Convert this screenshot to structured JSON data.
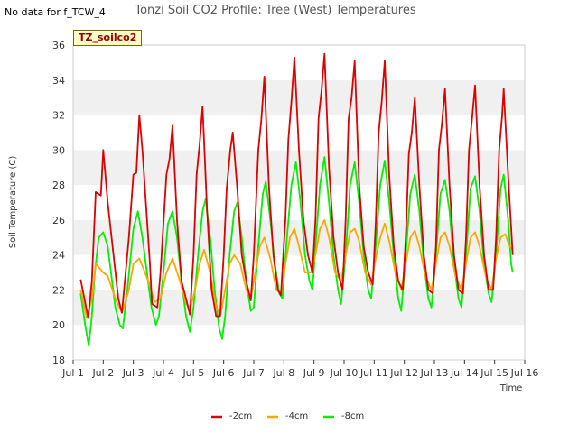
{
  "note": "No data for f_TCW_4",
  "badge": "TZ_soilco2",
  "chart_data": {
    "type": "line",
    "title": "Tonzi Soil CO2 Profile: Tree (West) Temperatures",
    "xlabel": "Time",
    "ylabel": "Soil Temperature (C)",
    "xlim": [
      1,
      16
    ],
    "ylim": [
      18,
      36
    ],
    "x_ticks": [
      1,
      2,
      3,
      4,
      5,
      6,
      7,
      8,
      9,
      10,
      11,
      12,
      13,
      14,
      15,
      16
    ],
    "x_tick_labels": [
      "Jul 1",
      "Jul 2",
      "Jul 3",
      "Jul 4",
      "Jul 5",
      "Jul 6",
      "Jul 7",
      "Jul 8",
      "Jul 9",
      "Jul 10",
      "Jul 11",
      "Jul 12",
      "Jul 13",
      "Jul 14",
      "Jul 15",
      "Jul 16"
    ],
    "y_ticks": [
      18,
      20,
      22,
      24,
      26,
      28,
      30,
      32,
      34,
      36
    ],
    "grid": "horizontal bands",
    "legend_position": "bottom",
    "series_colors": [
      "#dd0000",
      "#ffa500",
      "#00ee00"
    ],
    "series": [
      {
        "name": "-2cm",
        "color": "#dd0000",
        "points": [
          [
            1.25,
            22.6
          ],
          [
            1.5,
            20.4
          ],
          [
            1.62,
            22.5
          ],
          [
            1.75,
            27.6
          ],
          [
            1.92,
            27.4
          ],
          [
            2.0,
            30.0
          ],
          [
            2.15,
            27.0
          ],
          [
            2.5,
            21.5
          ],
          [
            2.62,
            20.7
          ],
          [
            2.85,
            25.0
          ],
          [
            3.0,
            28.6
          ],
          [
            3.1,
            28.7
          ],
          [
            3.2,
            32.0
          ],
          [
            3.3,
            30.0
          ],
          [
            3.55,
            23.5
          ],
          [
            3.62,
            21.2
          ],
          [
            3.8,
            21.0
          ],
          [
            3.9,
            23.0
          ],
          [
            4.1,
            28.6
          ],
          [
            4.2,
            29.5
          ],
          [
            4.3,
            31.4
          ],
          [
            4.45,
            26.0
          ],
          [
            4.6,
            22.5
          ],
          [
            4.75,
            21.5
          ],
          [
            4.88,
            20.6
          ],
          [
            5.0,
            24.0
          ],
          [
            5.1,
            28.6
          ],
          [
            5.2,
            30.3
          ],
          [
            5.3,
            32.5
          ],
          [
            5.45,
            26.5
          ],
          [
            5.6,
            22.0
          ],
          [
            5.75,
            20.5
          ],
          [
            5.88,
            20.5
          ],
          [
            6.0,
            24.0
          ],
          [
            6.1,
            27.8
          ],
          [
            6.22,
            30.0
          ],
          [
            6.3,
            31.0
          ],
          [
            6.45,
            27.8
          ],
          [
            6.6,
            24.0
          ],
          [
            6.75,
            22.5
          ],
          [
            6.9,
            21.4
          ],
          [
            7.0,
            24.0
          ],
          [
            7.15,
            30.0
          ],
          [
            7.25,
            31.7
          ],
          [
            7.35,
            34.2
          ],
          [
            7.5,
            28.0
          ],
          [
            7.65,
            24.0
          ],
          [
            7.8,
            22.0
          ],
          [
            7.9,
            21.7
          ],
          [
            8.05,
            26.0
          ],
          [
            8.15,
            30.6
          ],
          [
            8.25,
            32.8
          ],
          [
            8.35,
            35.3
          ],
          [
            8.5,
            30.0
          ],
          [
            8.65,
            26.0
          ],
          [
            8.8,
            24.0
          ],
          [
            8.95,
            23.0
          ],
          [
            9.05,
            26.0
          ],
          [
            9.15,
            31.8
          ],
          [
            9.25,
            33.4
          ],
          [
            9.35,
            35.5
          ],
          [
            9.5,
            29.0
          ],
          [
            9.65,
            25.0
          ],
          [
            9.8,
            23.0
          ],
          [
            9.95,
            22.0
          ],
          [
            10.05,
            26.0
          ],
          [
            10.15,
            31.8
          ],
          [
            10.25,
            33.0
          ],
          [
            10.35,
            35.1
          ],
          [
            10.5,
            28.0
          ],
          [
            10.65,
            24.5
          ],
          [
            10.8,
            23.0
          ],
          [
            10.95,
            22.3
          ],
          [
            11.05,
            25.8
          ],
          [
            11.15,
            31.0
          ],
          [
            11.25,
            32.8
          ],
          [
            11.35,
            35.1
          ],
          [
            11.5,
            28.5
          ],
          [
            11.65,
            24.5
          ],
          [
            11.8,
            22.5
          ],
          [
            11.95,
            22.0
          ],
          [
            12.05,
            25.0
          ],
          [
            12.15,
            29.8
          ],
          [
            12.25,
            31.0
          ],
          [
            12.35,
            33.0
          ],
          [
            12.5,
            28.0
          ],
          [
            12.65,
            24.0
          ],
          [
            12.8,
            22.0
          ],
          [
            12.95,
            21.8
          ],
          [
            13.05,
            24.5
          ],
          [
            13.15,
            30.0
          ],
          [
            13.25,
            31.5
          ],
          [
            13.35,
            33.5
          ],
          [
            13.5,
            28.0
          ],
          [
            13.65,
            24.0
          ],
          [
            13.8,
            22.0
          ],
          [
            13.95,
            21.8
          ],
          [
            14.05,
            25.0
          ],
          [
            14.15,
            30.0
          ],
          [
            14.25,
            31.8
          ],
          [
            14.35,
            33.7
          ],
          [
            14.5,
            28.0
          ],
          [
            14.65,
            24.0
          ],
          [
            14.8,
            22.0
          ],
          [
            14.95,
            22.0
          ],
          [
            15.05,
            25.0
          ],
          [
            15.15,
            30.0
          ],
          [
            15.25,
            32.0
          ],
          [
            15.3,
            33.5
          ],
          [
            15.45,
            28.5
          ],
          [
            15.6,
            24.0
          ]
        ]
      },
      {
        "name": "-4cm",
        "color": "#ffa500",
        "points": [
          [
            1.25,
            22.0
          ],
          [
            1.45,
            20.4
          ],
          [
            1.62,
            21.5
          ],
          [
            1.75,
            23.5
          ],
          [
            2.0,
            23.0
          ],
          [
            2.15,
            22.8
          ],
          [
            2.4,
            21.5
          ],
          [
            2.62,
            20.7
          ],
          [
            2.85,
            22.0
          ],
          [
            3.0,
            23.5
          ],
          [
            3.2,
            23.8
          ],
          [
            3.5,
            22.5
          ],
          [
            3.7,
            21.3
          ],
          [
            3.9,
            21.5
          ],
          [
            4.1,
            23.0
          ],
          [
            4.3,
            23.8
          ],
          [
            4.55,
            22.5
          ],
          [
            4.75,
            21.2
          ],
          [
            4.9,
            21.0
          ],
          [
            5.05,
            22.0
          ],
          [
            5.2,
            23.5
          ],
          [
            5.35,
            24.3
          ],
          [
            5.55,
            23.0
          ],
          [
            5.75,
            21.0
          ],
          [
            5.9,
            20.6
          ],
          [
            6.05,
            22.0
          ],
          [
            6.2,
            23.5
          ],
          [
            6.35,
            24.0
          ],
          [
            6.55,
            23.5
          ],
          [
            6.75,
            22.0
          ],
          [
            6.9,
            21.5
          ],
          [
            7.05,
            23.0
          ],
          [
            7.2,
            24.5
          ],
          [
            7.35,
            25.0
          ],
          [
            7.55,
            23.8
          ],
          [
            7.75,
            22.0
          ],
          [
            7.9,
            21.8
          ],
          [
            8.05,
            23.5
          ],
          [
            8.2,
            25.0
          ],
          [
            8.35,
            25.5
          ],
          [
            8.5,
            24.5
          ],
          [
            8.7,
            23.0
          ],
          [
            8.9,
            23.0
          ],
          [
            9.05,
            24.0
          ],
          [
            9.2,
            25.5
          ],
          [
            9.35,
            26.0
          ],
          [
            9.5,
            25.0
          ],
          [
            9.7,
            23.0
          ],
          [
            9.9,
            22.5
          ],
          [
            10.05,
            24.0
          ],
          [
            10.2,
            25.3
          ],
          [
            10.35,
            25.5
          ],
          [
            10.5,
            24.8
          ],
          [
            10.7,
            23.0
          ],
          [
            10.9,
            22.3
          ],
          [
            11.05,
            23.8
          ],
          [
            11.2,
            25.0
          ],
          [
            11.35,
            25.8
          ],
          [
            11.5,
            24.8
          ],
          [
            11.7,
            23.0
          ],
          [
            11.9,
            22.0
          ],
          [
            12.05,
            23.5
          ],
          [
            12.2,
            25.0
          ],
          [
            12.35,
            25.4
          ],
          [
            12.5,
            24.5
          ],
          [
            12.7,
            22.8
          ],
          [
            12.9,
            22.0
          ],
          [
            13.05,
            23.5
          ],
          [
            13.2,
            25.0
          ],
          [
            13.35,
            25.3
          ],
          [
            13.5,
            24.5
          ],
          [
            13.7,
            22.8
          ],
          [
            13.9,
            22.0
          ],
          [
            14.05,
            23.5
          ],
          [
            14.2,
            25.0
          ],
          [
            14.35,
            25.3
          ],
          [
            14.5,
            24.5
          ],
          [
            14.7,
            22.8
          ],
          [
            14.9,
            22.0
          ],
          [
            15.05,
            23.8
          ],
          [
            15.2,
            25.0
          ],
          [
            15.35,
            25.2
          ],
          [
            15.5,
            24.5
          ],
          [
            15.6,
            24.3
          ]
        ]
      },
      {
        "name": "-8cm",
        "color": "#00ee00",
        "points": [
          [
            1.25,
            21.8
          ],
          [
            1.4,
            20.0
          ],
          [
            1.52,
            18.8
          ],
          [
            1.62,
            20.5
          ],
          [
            1.72,
            23.0
          ],
          [
            1.85,
            25.0
          ],
          [
            2.0,
            25.3
          ],
          [
            2.15,
            24.5
          ],
          [
            2.4,
            21.0
          ],
          [
            2.55,
            20.0
          ],
          [
            2.65,
            19.8
          ],
          [
            2.8,
            22.0
          ],
          [
            3.0,
            25.5
          ],
          [
            3.15,
            26.5
          ],
          [
            3.3,
            25.0
          ],
          [
            3.45,
            23.0
          ],
          [
            3.6,
            21.0
          ],
          [
            3.75,
            20.0
          ],
          [
            3.85,
            20.5
          ],
          [
            4.0,
            23.0
          ],
          [
            4.15,
            25.8
          ],
          [
            4.3,
            26.5
          ],
          [
            4.45,
            25.0
          ],
          [
            4.6,
            22.5
          ],
          [
            4.75,
            20.5
          ],
          [
            4.88,
            19.6
          ],
          [
            5.0,
            21.0
          ],
          [
            5.15,
            24.0
          ],
          [
            5.3,
            26.5
          ],
          [
            5.4,
            27.2
          ],
          [
            5.55,
            25.0
          ],
          [
            5.7,
            22.0
          ],
          [
            5.85,
            19.8
          ],
          [
            5.95,
            19.2
          ],
          [
            6.05,
            20.5
          ],
          [
            6.2,
            24.0
          ],
          [
            6.35,
            26.5
          ],
          [
            6.45,
            27.0
          ],
          [
            6.6,
            25.0
          ],
          [
            6.75,
            22.5
          ],
          [
            6.9,
            20.8
          ],
          [
            7.0,
            21.0
          ],
          [
            7.15,
            24.5
          ],
          [
            7.3,
            27.5
          ],
          [
            7.4,
            28.2
          ],
          [
            7.55,
            26.0
          ],
          [
            7.7,
            23.5
          ],
          [
            7.85,
            21.8
          ],
          [
            7.95,
            21.5
          ],
          [
            8.1,
            25.0
          ],
          [
            8.25,
            28.0
          ],
          [
            8.4,
            29.3
          ],
          [
            8.55,
            27.0
          ],
          [
            8.7,
            24.0
          ],
          [
            8.85,
            22.5
          ],
          [
            8.95,
            22.0
          ],
          [
            9.05,
            24.5
          ],
          [
            9.2,
            28.0
          ],
          [
            9.35,
            29.6
          ],
          [
            9.5,
            27.0
          ],
          [
            9.65,
            24.0
          ],
          [
            9.8,
            22.0
          ],
          [
            9.9,
            21.2
          ],
          [
            10.05,
            24.0
          ],
          [
            10.2,
            28.0
          ],
          [
            10.35,
            29.3
          ],
          [
            10.5,
            27.0
          ],
          [
            10.65,
            24.0
          ],
          [
            10.8,
            22.0
          ],
          [
            10.9,
            21.5
          ],
          [
            11.05,
            24.5
          ],
          [
            11.2,
            28.0
          ],
          [
            11.35,
            29.4
          ],
          [
            11.5,
            27.0
          ],
          [
            11.65,
            24.0
          ],
          [
            11.8,
            21.5
          ],
          [
            11.9,
            20.8
          ],
          [
            12.05,
            24.0
          ],
          [
            12.2,
            27.5
          ],
          [
            12.35,
            28.6
          ],
          [
            12.5,
            26.5
          ],
          [
            12.65,
            23.5
          ],
          [
            12.8,
            21.5
          ],
          [
            12.9,
            21.0
          ],
          [
            13.05,
            24.0
          ],
          [
            13.2,
            27.5
          ],
          [
            13.35,
            28.3
          ],
          [
            13.5,
            26.5
          ],
          [
            13.65,
            23.5
          ],
          [
            13.8,
            21.5
          ],
          [
            13.9,
            21.0
          ],
          [
            14.05,
            24.0
          ],
          [
            14.2,
            27.8
          ],
          [
            14.35,
            28.5
          ],
          [
            14.5,
            26.5
          ],
          [
            14.65,
            23.5
          ],
          [
            14.8,
            21.8
          ],
          [
            14.9,
            21.3
          ],
          [
            15.05,
            24.0
          ],
          [
            15.2,
            27.8
          ],
          [
            15.3,
            28.6
          ],
          [
            15.45,
            26.0
          ],
          [
            15.55,
            23.5
          ],
          [
            15.6,
            23.0
          ]
        ]
      }
    ]
  }
}
